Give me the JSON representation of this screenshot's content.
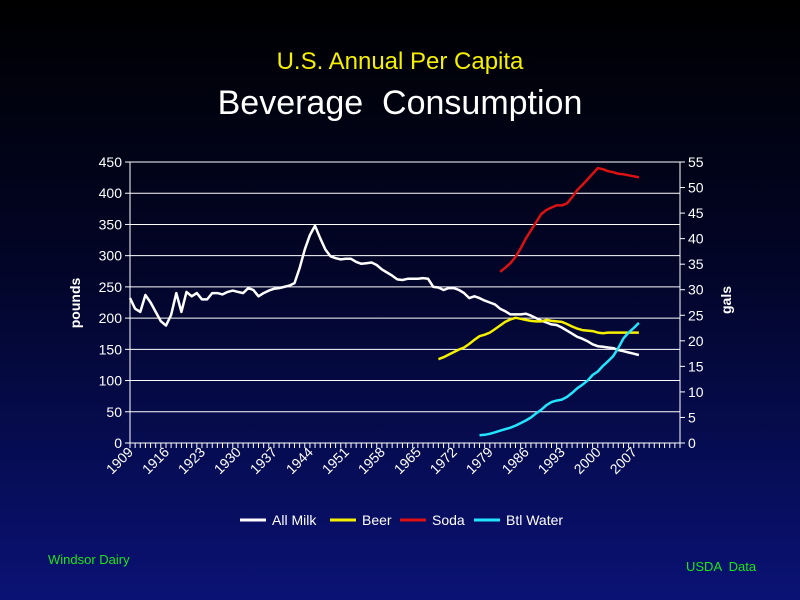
{
  "chart_data": {
    "type": "line",
    "title": "U.S. Annual Per Capita",
    "subtitle": "Beverage  Consumption",
    "ylabel_left": "pounds",
    "ylabel_right": "gals",
    "ylim_left": [
      0,
      450
    ],
    "ylim_right": [
      0,
      55
    ],
    "yticks_left": [
      "0",
      "50",
      "100",
      "150",
      "200",
      "250",
      "300",
      "350",
      "400",
      "450"
    ],
    "yticks_right": [
      "0",
      "5",
      "10",
      "15",
      "20",
      "25",
      "30",
      "35",
      "40",
      "45",
      "50",
      "55"
    ],
    "xlim": [
      1909,
      2016
    ],
    "xticks": [
      "1909",
      "1916",
      "1923",
      "1930",
      "1937",
      "1944",
      "1951",
      "1958",
      "1965",
      "1972",
      "1979",
      "1986",
      "1993",
      "2000",
      "2007"
    ],
    "grid": true,
    "legend_position": "bottom",
    "series": [
      {
        "name": "All Milk",
        "axis": "left",
        "color": "#ffffff",
        "x": [
          1909,
          1910,
          1911,
          1912,
          1913,
          1914,
          1915,
          1916,
          1917,
          1918,
          1919,
          1920,
          1921,
          1922,
          1923,
          1924,
          1925,
          1926,
          1927,
          1928,
          1929,
          1930,
          1931,
          1932,
          1933,
          1934,
          1935,
          1936,
          1937,
          1938,
          1939,
          1940,
          1941,
          1942,
          1943,
          1944,
          1945,
          1946,
          1947,
          1948,
          1949,
          1950,
          1951,
          1952,
          1953,
          1954,
          1955,
          1956,
          1957,
          1958,
          1959,
          1960,
          1961,
          1962,
          1963,
          1964,
          1965,
          1966,
          1967,
          1968,
          1969,
          1970,
          1971,
          1972,
          1973,
          1974,
          1975,
          1976,
          1977,
          1978,
          1979,
          1980,
          1981,
          1982,
          1983,
          1984,
          1985,
          1986,
          1987,
          1988,
          1989,
          1990,
          1991,
          1992,
          1993,
          1994,
          1995,
          1996,
          1997,
          1998,
          1999,
          2000,
          2001,
          2002,
          2003,
          2004,
          2005,
          2006,
          2007,
          2008
        ],
        "values": [
          232,
          215,
          210,
          237,
          225,
          210,
          195,
          188,
          205,
          240,
          210,
          242,
          235,
          240,
          230,
          230,
          240,
          240,
          238,
          242,
          244,
          242,
          240,
          248,
          245,
          235,
          240,
          244,
          247,
          248,
          250,
          252,
          256,
          280,
          310,
          333,
          348,
          328,
          310,
          299,
          296,
          294,
          295,
          295,
          290,
          287,
          288,
          289,
          285,
          278,
          273,
          268,
          262,
          261,
          263,
          263,
          263,
          264,
          263,
          250,
          249,
          245,
          248,
          248,
          245,
          240,
          232,
          235,
          232,
          228,
          225,
          222,
          215,
          211,
          206,
          206,
          206,
          207,
          204,
          200,
          196,
          193,
          190,
          189,
          185,
          180,
          175,
          170,
          167,
          163,
          158,
          155,
          154,
          153,
          152,
          149,
          147,
          145,
          143,
          141
        ]
      },
      {
        "name": "Beer",
        "axis": "right",
        "color": "#f5f000",
        "x": [
          1969,
          1970,
          1971,
          1972,
          1973,
          1974,
          1975,
          1976,
          1977,
          1978,
          1979,
          1980,
          1981,
          1982,
          1983,
          1984,
          1985,
          1986,
          1987,
          1988,
          1989,
          1990,
          1991,
          1992,
          1993,
          1994,
          1995,
          1996,
          1997,
          1998,
          1999,
          2000,
          2001,
          2002,
          2003,
          2004,
          2005,
          2006,
          2007,
          2008
        ],
        "values": [
          16.4,
          16.8,
          17.3,
          17.8,
          18.3,
          18.7,
          19.4,
          20.2,
          20.9,
          21.2,
          21.6,
          22.3,
          23.0,
          23.7,
          24.2,
          24.5,
          24.3,
          24.1,
          23.9,
          23.8,
          23.8,
          24.1,
          23.9,
          23.8,
          23.7,
          23.3,
          22.8,
          22.4,
          22.1,
          22.0,
          21.9,
          21.6,
          21.5,
          21.6,
          21.6,
          21.6,
          21.6,
          21.6,
          21.6,
          21.6
        ]
      },
      {
        "name": "Soda",
        "axis": "right",
        "color": "#dd1111",
        "x": [
          1981,
          1982,
          1983,
          1984,
          1985,
          1986,
          1987,
          1988,
          1989,
          1990,
          1991,
          1992,
          1993,
          1994,
          1995,
          1996,
          1997,
          1998,
          1999,
          2000,
          2001,
          2002,
          2003,
          2004,
          2005,
          2006,
          2007,
          2008
        ],
        "values": [
          33.5,
          34.3,
          35.2,
          36.4,
          38.1,
          40.0,
          41.6,
          43.2,
          44.8,
          45.6,
          46.1,
          46.5,
          46.5,
          46.9,
          48.1,
          49.5,
          50.5,
          51.6,
          52.7,
          53.8,
          53.6,
          53.2,
          53.0,
          52.7,
          52.6,
          52.4,
          52.2,
          52.0
        ]
      },
      {
        "name": "Btl Water",
        "axis": "right",
        "color": "#22e5ff",
        "x": [
          1977,
          1978,
          1979,
          1980,
          1981,
          1982,
          1983,
          1984,
          1985,
          1986,
          1987,
          1988,
          1989,
          1990,
          1991,
          1992,
          1993,
          1994,
          1995,
          1996,
          1997,
          1998,
          1999,
          2000,
          2001,
          2002,
          2003,
          2004,
          2005,
          2006,
          2007,
          2008
        ],
        "values": [
          1.5,
          1.6,
          1.8,
          2.1,
          2.4,
          2.7,
          3.0,
          3.4,
          3.9,
          4.4,
          5.0,
          5.8,
          6.5,
          7.4,
          8.0,
          8.3,
          8.5,
          9.0,
          9.8,
          10.7,
          11.4,
          12.2,
          13.3,
          14.0,
          15.1,
          16.0,
          17.0,
          18.6,
          20.5,
          21.6,
          22.5,
          23.5
        ]
      }
    ]
  },
  "footer": {
    "left": "Windsor  Dairy",
    "right": "USDA  Data"
  }
}
